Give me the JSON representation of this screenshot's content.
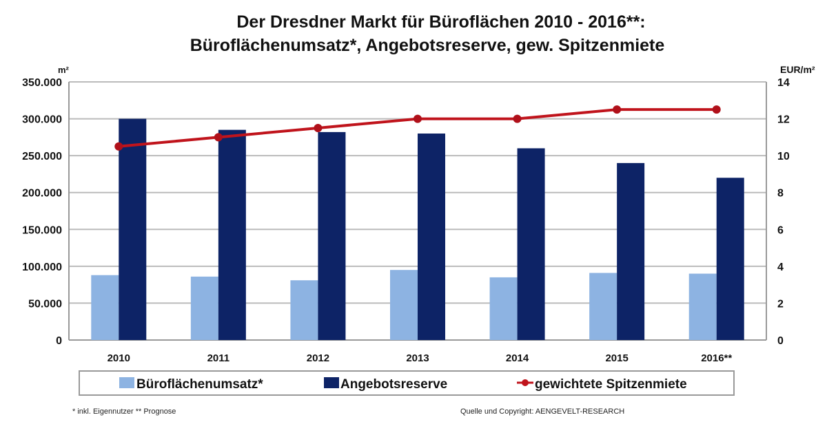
{
  "chart_data": {
    "type": "bar",
    "title": "Der Dresdner Markt für Büroflächen 2010 - 2016**:",
    "subtitle": "Büroflächenumsatz*, Angebotsreserve,  gew. Spitzenmiete",
    "categories": [
      "2010",
      "2011",
      "2012",
      "2013",
      "2014",
      "2015",
      "2016**"
    ],
    "ylabel_left": "m²",
    "ylabel_right": "EUR/m²",
    "ylim_left": [
      0,
      350000
    ],
    "ylim_right": [
      0,
      14
    ],
    "yticks_left": [
      "0",
      "50.000",
      "100.000",
      "150.000",
      "200.000",
      "250.000",
      "300.000",
      "350.000"
    ],
    "yticks_right": [
      "0",
      "2",
      "4",
      "6",
      "8",
      "10",
      "12",
      "14"
    ],
    "grid": true,
    "legend_position": "bottom",
    "series": [
      {
        "name": "Büroflächenumsatz*",
        "type": "bar",
        "axis": "left",
        "color": "#8db3e2",
        "values": [
          88000,
          86000,
          81000,
          95000,
          85000,
          91000,
          90000
        ]
      },
      {
        "name": "Angebotsreserve",
        "type": "bar",
        "axis": "left",
        "color": "#0d2366",
        "values": [
          300000,
          285000,
          282000,
          280000,
          260000,
          240000,
          220000
        ]
      },
      {
        "name": "gewichtete Spitzenmiete",
        "type": "line",
        "axis": "right",
        "color": "#c0141c",
        "values": [
          10.5,
          11,
          11.5,
          12,
          12,
          12.5,
          12.5
        ]
      }
    ],
    "footnote_left": "* inkl. Eigennutzer  ** Prognose",
    "footnote_right": "Quelle und Copyright: AENGEVELT-RESEARCH"
  }
}
